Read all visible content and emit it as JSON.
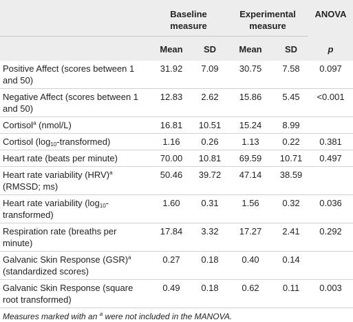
{
  "table": {
    "group_headers": [
      "Baseline measure",
      "Experimental measure",
      "ANOVA"
    ],
    "sub_headers": [
      "Mean",
      "SD",
      "Mean",
      "SD",
      "p"
    ],
    "rows": [
      {
        "label": [
          {
            "t": "Positive Affect (scores between 1 and 50)"
          }
        ],
        "cells": [
          "31.92",
          "7.09",
          "30.75",
          "7.58",
          "0.097"
        ]
      },
      {
        "label": [
          {
            "t": "Negative Affect (scores between 1 and 50)"
          }
        ],
        "cells": [
          "12.83",
          "2.62",
          "15.86",
          "5.45",
          "<0.001"
        ]
      },
      {
        "label": [
          {
            "t": "Cortisol"
          },
          {
            "sup": "a"
          },
          {
            "t": " (nmol/L)"
          }
        ],
        "cells": [
          "16.81",
          "10.51",
          "15.24",
          "8.99",
          null
        ]
      },
      {
        "label": [
          {
            "t": "Cortisol (log"
          },
          {
            "sub": "10"
          },
          {
            "t": "-transformed)"
          }
        ],
        "cells": [
          "1.16",
          "0.26",
          "1.13",
          "0.22",
          "0.381"
        ]
      },
      {
        "label": [
          {
            "t": "Heart rate (beats per minute)"
          }
        ],
        "cells": [
          "70.00",
          "10.81",
          "69.59",
          "10.71",
          "0.497"
        ]
      },
      {
        "label": [
          {
            "t": "Heart rate variability (HRV)"
          },
          {
            "sup": "a"
          },
          {
            "t": " (RMSSD; ms)"
          }
        ],
        "cells": [
          "50.46",
          "39.72",
          "47.14",
          "38.59",
          null
        ]
      },
      {
        "label": [
          {
            "t": "Heart rate variability (log"
          },
          {
            "sub": "10"
          },
          {
            "t": "-transformed)"
          }
        ],
        "cells": [
          "1.60",
          "0.31",
          "1.56",
          "0.32",
          "0.036"
        ]
      },
      {
        "label": [
          {
            "t": "Respiration rate (breaths per minute)"
          }
        ],
        "cells": [
          "17.84",
          "3.32",
          "17.27",
          "2.41",
          "0.292"
        ]
      },
      {
        "label": [
          {
            "t": "Galvanic Skin Response (GSR)"
          },
          {
            "sup": "a"
          },
          {
            "t": " (standardized scores)"
          }
        ],
        "cells": [
          "0.27",
          "0.18",
          "0.40",
          "0.14",
          null
        ]
      },
      {
        "label": [
          {
            "t": "Galvanic Skin Response (square root transformed)"
          }
        ],
        "cells": [
          "0.49",
          "0.18",
          "0.62",
          "0.11",
          "0.003"
        ]
      }
    ]
  },
  "footnote": [
    {
      "t": "Measures marked with an "
    },
    {
      "sup": "a"
    },
    {
      "t": " were not included in the MANOVA."
    }
  ]
}
